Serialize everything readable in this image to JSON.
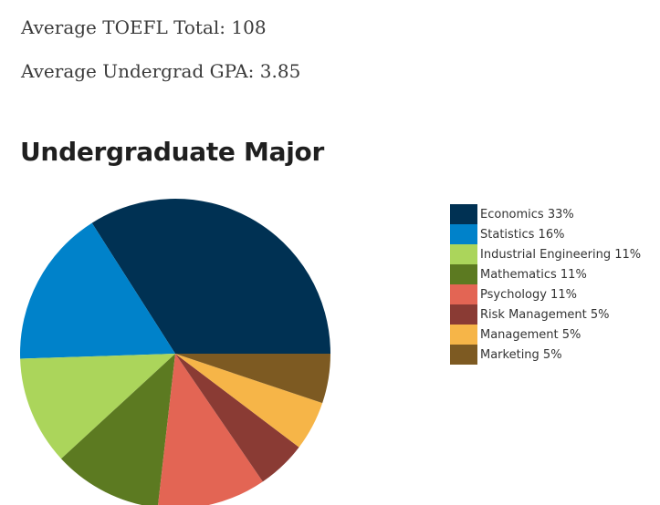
{
  "stats": {
    "toefl": "Average TOEFL Total: 108",
    "gpa": "Average Undergrad GPA: 3.85"
  },
  "section_title": "Undergraduate Major",
  "chart_data": {
    "type": "pie",
    "title": "",
    "legend_position": "right",
    "slices": [
      {
        "label": "Economics 33%",
        "value": 33,
        "color": "#003153"
      },
      {
        "label": "Statistics 16%",
        "value": 16,
        "color": "#0082CA"
      },
      {
        "label": "Industrial Engineering 11%",
        "value": 11,
        "color": "#ABD55B"
      },
      {
        "label": "Mathematics 11%",
        "value": 11,
        "color": "#5C7A21"
      },
      {
        "label": "Psychology 11%",
        "value": 11,
        "color": "#E36554"
      },
      {
        "label": "Risk Management 5%",
        "value": 5,
        "color": "#8A3B34"
      },
      {
        "label": "Management 5%",
        "value": 5,
        "color": "#F6B548"
      },
      {
        "label": "Marketing 5%",
        "value": 5,
        "color": "#7D5A22"
      }
    ]
  }
}
